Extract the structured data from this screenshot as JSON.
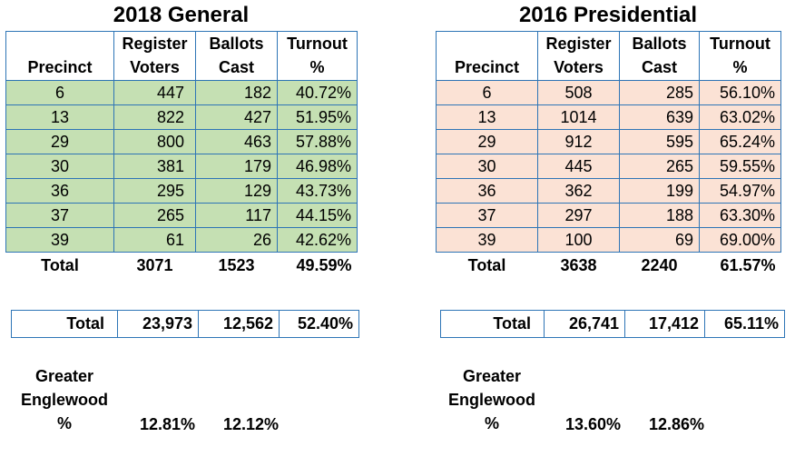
{
  "left": {
    "title": "2018 General",
    "headers": {
      "precinct": "Precinct",
      "registered_l1": "Register",
      "registered_l2": "Voters",
      "ballots_l1": "Ballots",
      "ballots_l2": "Cast",
      "turnout_l1": "Turnout",
      "turnout_l2": "%"
    },
    "rows": [
      {
        "precinct": "6",
        "registered": "447",
        "ballots": "182",
        "turnout": "40.72%"
      },
      {
        "precinct": "13",
        "registered": "822",
        "ballots": "427",
        "turnout": "51.95%"
      },
      {
        "precinct": "29",
        "registered": "800",
        "ballots": "463",
        "turnout": "57.88%"
      },
      {
        "precinct": "30",
        "registered": "381",
        "ballots": "179",
        "turnout": "46.98%"
      },
      {
        "precinct": "36",
        "registered": "295",
        "ballots": "129",
        "turnout": "43.73%"
      },
      {
        "precinct": "37",
        "registered": "265",
        "ballots": "117",
        "turnout": "44.15%"
      },
      {
        "precinct": "39",
        "registered": "61",
        "ballots": "26",
        "turnout": "42.62%"
      }
    ],
    "total": {
      "label": "Total",
      "registered": "3071",
      "ballots": "1523",
      "turnout": "49.59%"
    },
    "overall": {
      "label": "Total",
      "registered": "23,973",
      "ballots": "12,562",
      "turnout": "52.40%"
    },
    "greater": {
      "line1": "Greater",
      "line2": "Englewood",
      "line3": "%",
      "registered_pct": "12.81%",
      "ballots_pct": "12.12%"
    }
  },
  "right": {
    "title": "2016 Presidential",
    "headers": {
      "precinct": "Precinct",
      "registered_l1": "Register",
      "registered_l2": "Voters",
      "ballots_l1": "Ballots",
      "ballots_l2": "Cast",
      "turnout_l1": "Turnout",
      "turnout_l2": "%"
    },
    "rows": [
      {
        "precinct": "6",
        "registered": "508",
        "ballots": "285",
        "turnout": "56.10%"
      },
      {
        "precinct": "13",
        "registered": "1014",
        "ballots": "639",
        "turnout": "63.02%"
      },
      {
        "precinct": "29",
        "registered": "912",
        "ballots": "595",
        "turnout": "65.24%"
      },
      {
        "precinct": "30",
        "registered": "445",
        "ballots": "265",
        "turnout": "59.55%"
      },
      {
        "precinct": "36",
        "registered": "362",
        "ballots": "199",
        "turnout": "54.97%"
      },
      {
        "precinct": "37",
        "registered": "297",
        "ballots": "188",
        "turnout": "63.30%"
      },
      {
        "precinct": "39",
        "registered": "100",
        "ballots": "69",
        "turnout": "69.00%"
      }
    ],
    "total": {
      "label": "Total",
      "registered": "3638",
      "ballots": "2240",
      "turnout": "61.57%"
    },
    "overall": {
      "label": "Total",
      "registered": "26,741",
      "ballots": "17,412",
      "turnout": "65.11%"
    },
    "greater": {
      "line1": "Greater",
      "line2": "Englewood",
      "line3": "%",
      "registered_pct": "13.60%",
      "ballots_pct": "12.86%"
    }
  }
}
